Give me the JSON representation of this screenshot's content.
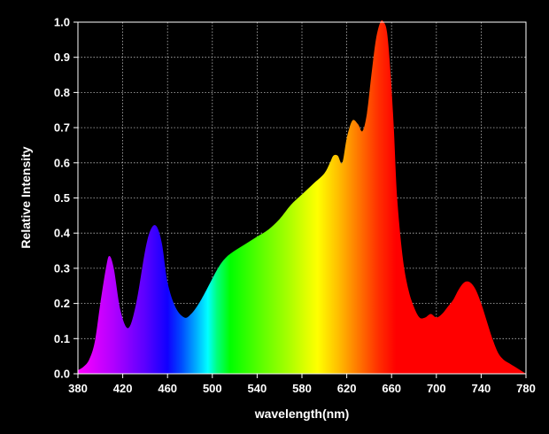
{
  "chart_data": {
    "type": "area",
    "title": "",
    "xlabel": "wavelength(nm)",
    "ylabel": "Relative Intensity",
    "xlim": [
      380,
      780
    ],
    "ylim": [
      0,
      1.0
    ],
    "xticks": [
      "380",
      "420",
      "460",
      "500",
      "540",
      "580",
      "620",
      "660",
      "700",
      "740",
      "780"
    ],
    "yticks": [
      "0.0",
      "0.1",
      "0.2",
      "0.3",
      "0.4",
      "0.5",
      "0.6",
      "0.7",
      "0.8",
      "0.9",
      "1.0"
    ],
    "grid": true,
    "fill": "visible-spectrum gradient",
    "series": [
      {
        "x": [
          380,
          385,
          390,
          395,
          400,
          405,
          408,
          412,
          418,
          425,
          432,
          440,
          445,
          450,
          455,
          460,
          467,
          475,
          481,
          488,
          495,
          505,
          512,
          520,
          530,
          540,
          550,
          560,
          570,
          580,
          590,
          600,
          605,
          608,
          612,
          616,
          620,
          625,
          630,
          634,
          638,
          642,
          646,
          650,
          653,
          656,
          659,
          662,
          665,
          670,
          675,
          680,
          685,
          690,
          695,
          700,
          705,
          710,
          715,
          720,
          725,
          730,
          735,
          740,
          745,
          750,
          755,
          760,
          765,
          770,
          775,
          780
        ],
        "y": [
          0.01,
          0.02,
          0.04,
          0.09,
          0.2,
          0.3,
          0.335,
          0.3,
          0.18,
          0.13,
          0.2,
          0.35,
          0.41,
          0.42,
          0.37,
          0.26,
          0.19,
          0.16,
          0.17,
          0.2,
          0.24,
          0.3,
          0.33,
          0.35,
          0.37,
          0.39,
          0.41,
          0.44,
          0.48,
          0.51,
          0.54,
          0.57,
          0.6,
          0.62,
          0.62,
          0.6,
          0.67,
          0.72,
          0.71,
          0.69,
          0.74,
          0.85,
          0.95,
          1.0,
          1.0,
          0.97,
          0.86,
          0.7,
          0.5,
          0.33,
          0.24,
          0.19,
          0.16,
          0.16,
          0.17,
          0.16,
          0.17,
          0.19,
          0.21,
          0.24,
          0.26,
          0.26,
          0.24,
          0.2,
          0.15,
          0.1,
          0.06,
          0.04,
          0.03,
          0.02,
          0.01,
          0.0
        ]
      }
    ]
  }
}
